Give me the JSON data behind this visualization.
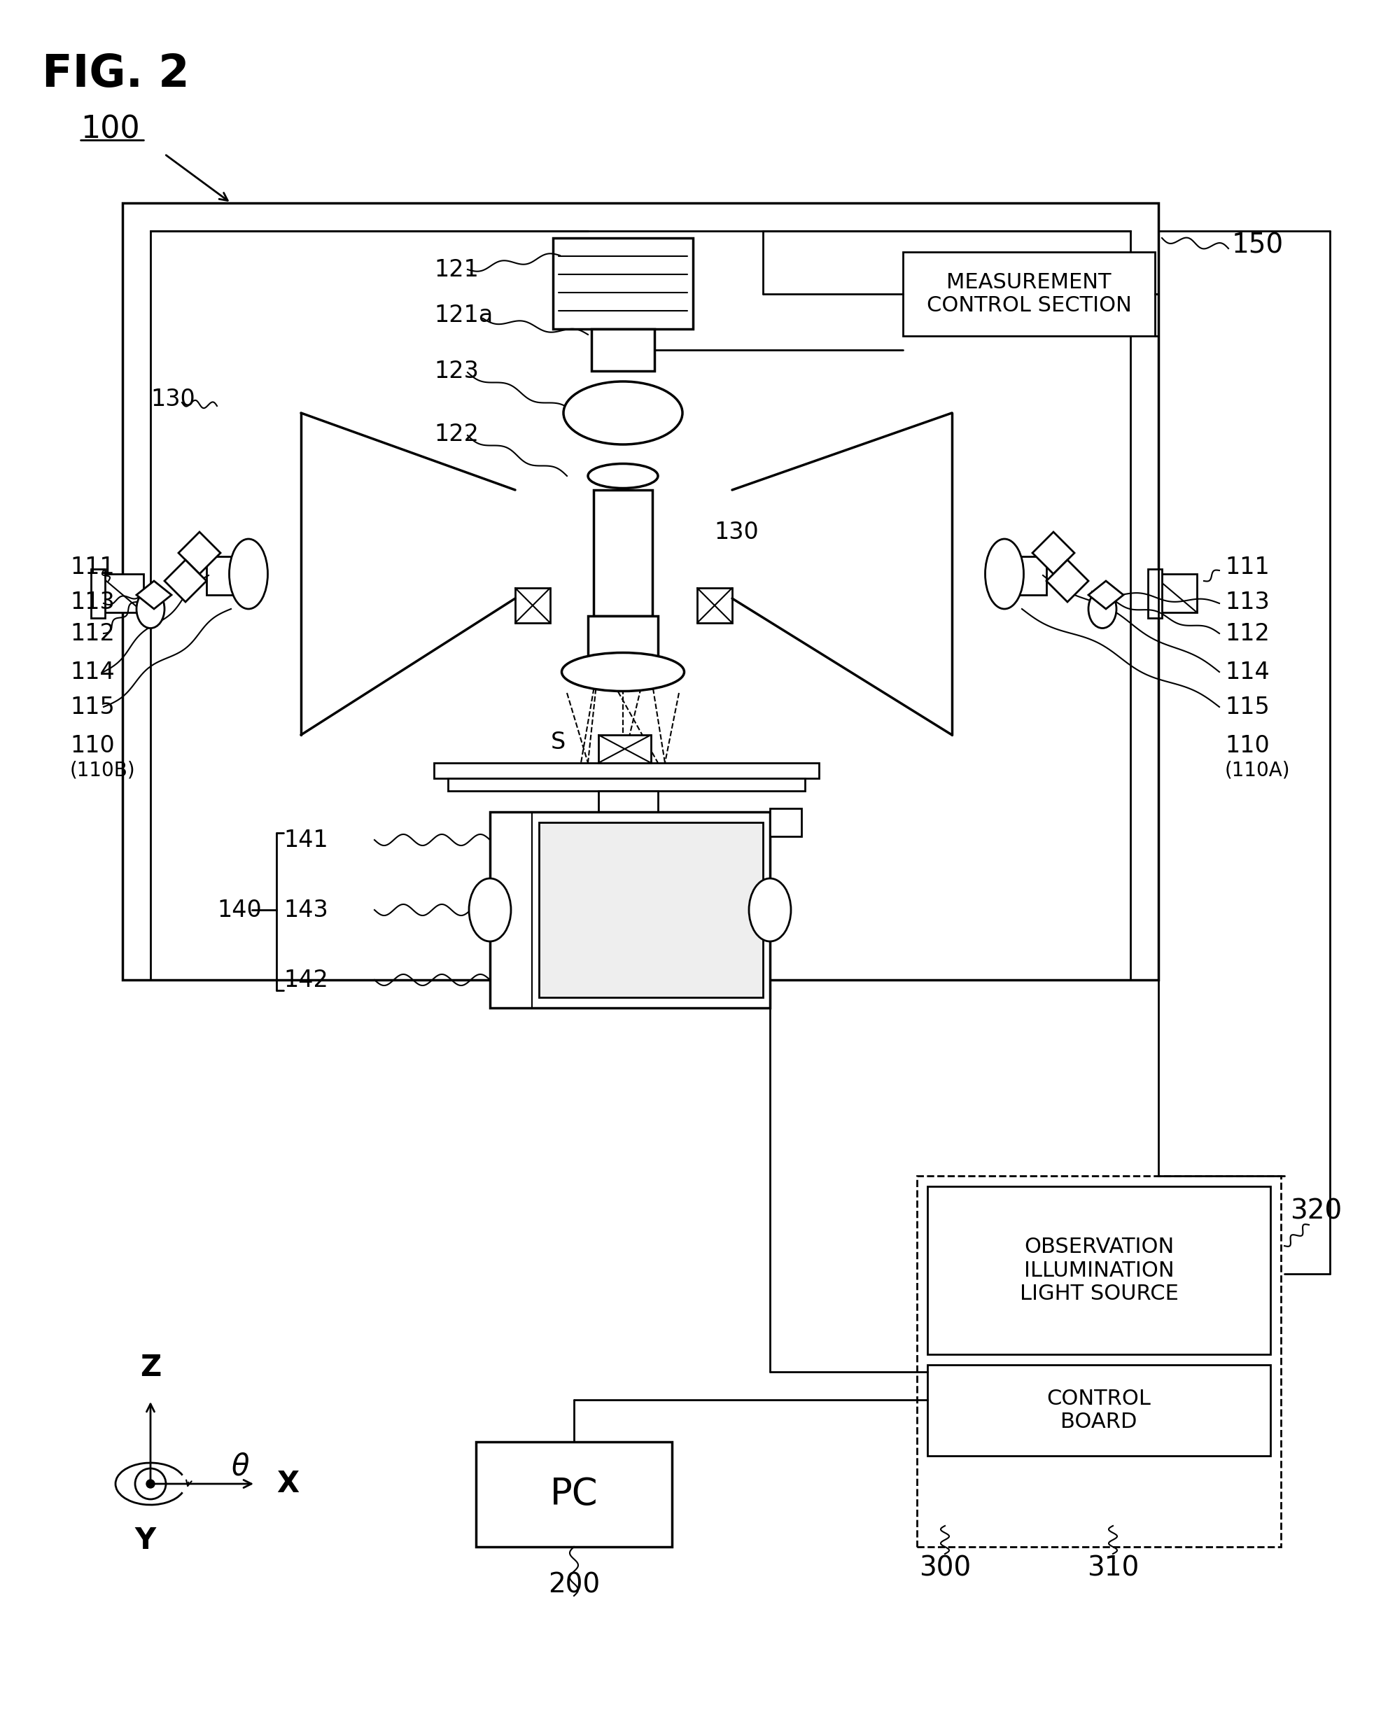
{
  "fig_label": "FIG. 2",
  "bg_color": "#ffffff",
  "label_100": "100",
  "label_150": "150",
  "label_110A": "110",
  "label_110A2": "(110A)",
  "label_110B": "110",
  "label_110B2": "(110B)",
  "label_111_L": "111",
  "label_112_L": "112",
  "label_113_L": "113",
  "label_114_L": "114",
  "label_115_L": "115",
  "label_111_R": "111",
  "label_112_R": "112",
  "label_113_R": "113",
  "label_114_R": "114",
  "label_115_R": "115",
  "label_121": "121",
  "label_121a": "121a",
  "label_122": "122",
  "label_123": "123",
  "label_130L": "130",
  "label_130R": "130",
  "label_S": "S",
  "label_140": "140",
  "label_141": "141",
  "label_142": "142",
  "label_143": "143",
  "label_200": "200",
  "label_300": "300",
  "label_310": "310",
  "label_320": "320",
  "box_mcs": "MEASUREMENT\nCONTROL SECTION",
  "box_obs": "OBSERVATION\nILLUMINATION\nLIGHT SOURCE",
  "box_ctrl": "CONTROL\nBOARD",
  "box_pc": "PC",
  "axis_x": "X",
  "axis_y": "Y",
  "axis_z": "Z",
  "axis_theta": "θ"
}
